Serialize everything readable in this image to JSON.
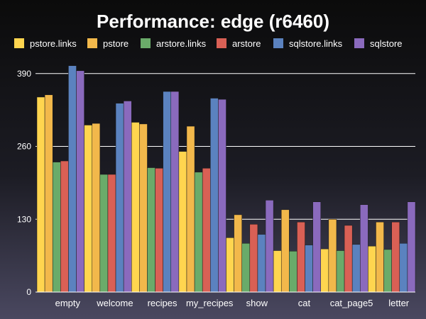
{
  "chart_data": {
    "type": "bar",
    "title": "Performance: edge (r6460)",
    "xlabel": "",
    "ylabel": "",
    "ylim": [
      0,
      415
    ],
    "yticks": [
      0,
      130,
      260,
      390
    ],
    "grid": true,
    "legend_position": "top",
    "categories": [
      "empty",
      "welcome",
      "recipes",
      "my_recipes",
      "show",
      "cat",
      "cat_page5",
      "letter"
    ],
    "series": [
      {
        "name": "pstore.links",
        "color": "#ffd54f",
        "values": [
          348,
          298,
          303,
          251,
          97,
          74,
          77,
          82
        ]
      },
      {
        "name": "pstore",
        "color": "#f2b84b",
        "values": [
          352,
          301,
          300,
          296,
          138,
          147,
          130,
          125
        ]
      },
      {
        "name": "arstore.links",
        "color": "#6aab6a",
        "values": [
          232,
          210,
          222,
          214,
          87,
          73,
          74,
          76
        ]
      },
      {
        "name": "arstore",
        "color": "#d96055",
        "values": [
          234,
          210,
          221,
          221,
          121,
          125,
          119,
          125
        ]
      },
      {
        "name": "sqlstore.links",
        "color": "#5b82bf",
        "values": [
          404,
          337,
          358,
          346,
          103,
          84,
          85,
          87
        ]
      },
      {
        "name": "sqlstore",
        "color": "#8a6abd",
        "values": [
          395,
          341,
          358,
          344,
          164,
          161,
          156,
          161
        ]
      }
    ]
  }
}
